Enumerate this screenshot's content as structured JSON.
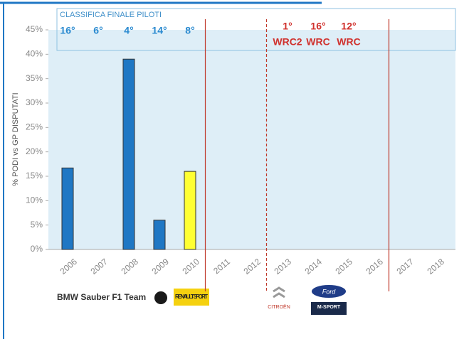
{
  "chart_data": {
    "type": "bar",
    "y_label": "% PODI vs GP DISPUTATI",
    "categories": [
      "2006",
      "2007",
      "2008",
      "2009",
      "2010",
      "2011",
      "2012",
      "2013",
      "2014",
      "2015",
      "2016",
      "2017",
      "2018"
    ],
    "values": [
      16.7,
      0,
      39,
      6,
      16,
      null,
      null,
      null,
      null,
      null,
      null,
      null,
      null
    ],
    "colors": [
      "#1f77c4",
      "#1f77c4",
      "#1f77c4",
      "#1f77c4",
      "#ffff33",
      "#1f77c4",
      "#1f77c4",
      "#1f77c4",
      "#1f77c4",
      "#1f77c4",
      "#1f77c4",
      "#1f77c4",
      "#1f77c4"
    ],
    "ylim": [
      0,
      45
    ],
    "yticks": [
      {
        "value": 0,
        "label": "0%"
      },
      {
        "value": 5,
        "label": "5%"
      },
      {
        "value": 10,
        "label": "10%"
      },
      {
        "value": 15,
        "label": "15%"
      },
      {
        "value": 20,
        "label": "20%"
      },
      {
        "value": 25,
        "label": "25%"
      },
      {
        "value": 30,
        "label": "30%"
      },
      {
        "value": 35,
        "label": "35%"
      },
      {
        "value": 40,
        "label": "40%"
      },
      {
        "value": 45,
        "label": "45%"
      }
    ],
    "box_title": "CLASSIFICA FINALE PILOTI",
    "driver_rankings": [
      {
        "category": "2006",
        "label": "16°"
      },
      {
        "category": "2007",
        "label": "6°"
      },
      {
        "category": "2008",
        "label": "4°"
      },
      {
        "category": "2009",
        "label": "14°"
      },
      {
        "category": "2010",
        "label": "8°"
      }
    ],
    "rally_rankings": [
      {
        "category": "2013",
        "label": "1°",
        "series": "WRC2"
      },
      {
        "category": "2014",
        "label": "16°",
        "series": "WRC"
      },
      {
        "category": "2015",
        "label": "12°",
        "series": "WRC"
      }
    ],
    "separators": [
      {
        "after": "2010",
        "style": "solid"
      },
      {
        "after": "2012",
        "style": "dashed"
      },
      {
        "after": "2016",
        "style": "solid"
      }
    ],
    "logos": [
      "BMW Sauber F1 Team",
      "RENAULT SPORT",
      "CITROËN",
      "Ford",
      "M-SPORT"
    ]
  }
}
